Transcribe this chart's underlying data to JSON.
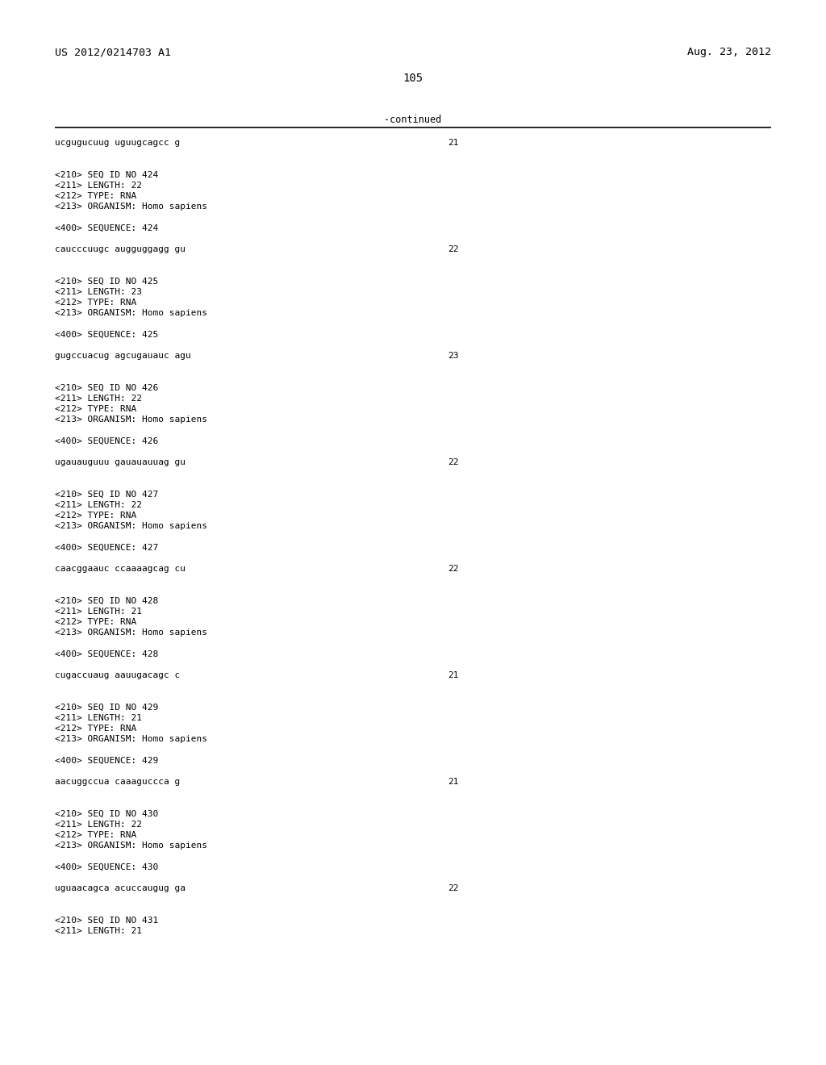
{
  "page_number": "105",
  "left_header": "US 2012/0214703 A1",
  "right_header": "Aug. 23, 2012",
  "continued_label": "-continued",
  "background_color": "#ffffff",
  "text_color": "#000000",
  "lines": [
    {
      "text": "ucgugucuug uguugcagcc g",
      "right_num": "21",
      "type": "sequence"
    },
    {
      "text": "",
      "type": "blank"
    },
    {
      "text": "",
      "type": "blank"
    },
    {
      "text": "<210> SEQ ID NO 424",
      "type": "meta"
    },
    {
      "text": "<211> LENGTH: 22",
      "type": "meta"
    },
    {
      "text": "<212> TYPE: RNA",
      "type": "meta"
    },
    {
      "text": "<213> ORGANISM: Homo sapiens",
      "type": "meta"
    },
    {
      "text": "",
      "type": "blank"
    },
    {
      "text": "<400> SEQUENCE: 424",
      "type": "meta"
    },
    {
      "text": "",
      "type": "blank"
    },
    {
      "text": "caucccuugc augguggagg gu",
      "right_num": "22",
      "type": "sequence"
    },
    {
      "text": "",
      "type": "blank"
    },
    {
      "text": "",
      "type": "blank"
    },
    {
      "text": "<210> SEQ ID NO 425",
      "type": "meta"
    },
    {
      "text": "<211> LENGTH: 23",
      "type": "meta"
    },
    {
      "text": "<212> TYPE: RNA",
      "type": "meta"
    },
    {
      "text": "<213> ORGANISM: Homo sapiens",
      "type": "meta"
    },
    {
      "text": "",
      "type": "blank"
    },
    {
      "text": "<400> SEQUENCE: 425",
      "type": "meta"
    },
    {
      "text": "",
      "type": "blank"
    },
    {
      "text": "gugccuacug agcugauauc agu",
      "right_num": "23",
      "type": "sequence"
    },
    {
      "text": "",
      "type": "blank"
    },
    {
      "text": "",
      "type": "blank"
    },
    {
      "text": "<210> SEQ ID NO 426",
      "type": "meta"
    },
    {
      "text": "<211> LENGTH: 22",
      "type": "meta"
    },
    {
      "text": "<212> TYPE: RNA",
      "type": "meta"
    },
    {
      "text": "<213> ORGANISM: Homo sapiens",
      "type": "meta"
    },
    {
      "text": "",
      "type": "blank"
    },
    {
      "text": "<400> SEQUENCE: 426",
      "type": "meta"
    },
    {
      "text": "",
      "type": "blank"
    },
    {
      "text": "ugauauguuu gauauauuag gu",
      "right_num": "22",
      "type": "sequence"
    },
    {
      "text": "",
      "type": "blank"
    },
    {
      "text": "",
      "type": "blank"
    },
    {
      "text": "<210> SEQ ID NO 427",
      "type": "meta"
    },
    {
      "text": "<211> LENGTH: 22",
      "type": "meta"
    },
    {
      "text": "<212> TYPE: RNA",
      "type": "meta"
    },
    {
      "text": "<213> ORGANISM: Homo sapiens",
      "type": "meta"
    },
    {
      "text": "",
      "type": "blank"
    },
    {
      "text": "<400> SEQUENCE: 427",
      "type": "meta"
    },
    {
      "text": "",
      "type": "blank"
    },
    {
      "text": "caacggaauc ccaaaagcag cu",
      "right_num": "22",
      "type": "sequence"
    },
    {
      "text": "",
      "type": "blank"
    },
    {
      "text": "",
      "type": "blank"
    },
    {
      "text": "<210> SEQ ID NO 428",
      "type": "meta"
    },
    {
      "text": "<211> LENGTH: 21",
      "type": "meta"
    },
    {
      "text": "<212> TYPE: RNA",
      "type": "meta"
    },
    {
      "text": "<213> ORGANISM: Homo sapiens",
      "type": "meta"
    },
    {
      "text": "",
      "type": "blank"
    },
    {
      "text": "<400> SEQUENCE: 428",
      "type": "meta"
    },
    {
      "text": "",
      "type": "blank"
    },
    {
      "text": "cugaccuaug aauugacagc c",
      "right_num": "21",
      "type": "sequence"
    },
    {
      "text": "",
      "type": "blank"
    },
    {
      "text": "",
      "type": "blank"
    },
    {
      "text": "<210> SEQ ID NO 429",
      "type": "meta"
    },
    {
      "text": "<211> LENGTH: 21",
      "type": "meta"
    },
    {
      "text": "<212> TYPE: RNA",
      "type": "meta"
    },
    {
      "text": "<213> ORGANISM: Homo sapiens",
      "type": "meta"
    },
    {
      "text": "",
      "type": "blank"
    },
    {
      "text": "<400> SEQUENCE: 429",
      "type": "meta"
    },
    {
      "text": "",
      "type": "blank"
    },
    {
      "text": "aacuggccua caaaguccca g",
      "right_num": "21",
      "type": "sequence"
    },
    {
      "text": "",
      "type": "blank"
    },
    {
      "text": "",
      "type": "blank"
    },
    {
      "text": "<210> SEQ ID NO 430",
      "type": "meta"
    },
    {
      "text": "<211> LENGTH: 22",
      "type": "meta"
    },
    {
      "text": "<212> TYPE: RNA",
      "type": "meta"
    },
    {
      "text": "<213> ORGANISM: Homo sapiens",
      "type": "meta"
    },
    {
      "text": "",
      "type": "blank"
    },
    {
      "text": "<400> SEQUENCE: 430",
      "type": "meta"
    },
    {
      "text": "",
      "type": "blank"
    },
    {
      "text": "uguaacagca acuccaugug ga",
      "right_num": "22",
      "type": "sequence"
    },
    {
      "text": "",
      "type": "blank"
    },
    {
      "text": "",
      "type": "blank"
    },
    {
      "text": "<210> SEQ ID NO 431",
      "type": "meta"
    },
    {
      "text": "<211> LENGTH: 21",
      "type": "meta"
    }
  ]
}
